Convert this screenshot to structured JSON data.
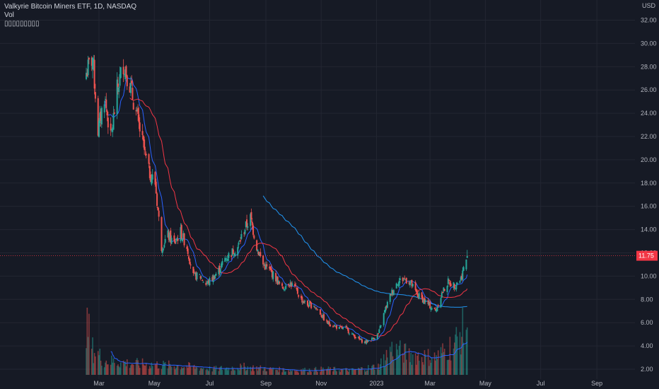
{
  "header": {
    "symbol_line": "Valkyrie Bitcoin Miners ETF, 1D, NASDAQ",
    "volume_label": "Vol",
    "indicator_placeholder": "▯▯▯▯▯▯▯▯▯"
  },
  "chart_data": {
    "type": "candlestick",
    "title": "Valkyrie Bitcoin Miners ETF, 1D, NASDAQ",
    "currency": "USD",
    "y_tick_labels": [
      "32.00",
      "30.00",
      "28.00",
      "26.00",
      "24.00",
      "22.00",
      "20.00",
      "18.00",
      "16.00",
      "14.00",
      "12.00",
      "10.00",
      "8.00",
      "6.00",
      "4.00",
      "2.00"
    ],
    "ylim": [
      1.8,
      33
    ],
    "x_tick_labels": [
      "Mar",
      "May",
      "Jul",
      "Sep",
      "Nov",
      "2023",
      "Mar",
      "May",
      "Jul",
      "Sep"
    ],
    "last_price": "11.75",
    "last_price_value": 11.75,
    "colors": {
      "up": "#26a69a",
      "down": "#ef5350",
      "ma_fast": "#2962ff",
      "ma_slow": "#f23645",
      "ma_long": "#2196f3",
      "price_line": "#f23645"
    },
    "price_path": [
      [
        "2022-02-15",
        27.5
      ],
      [
        "2022-02-22",
        28.8
      ],
      [
        "2022-02-28",
        22.5
      ],
      [
        "2022-03-07",
        25.5
      ],
      [
        "2022-03-14",
        21.8
      ],
      [
        "2022-03-21",
        26.0
      ],
      [
        "2022-03-28",
        28.3
      ],
      [
        "2022-04-04",
        26.5
      ],
      [
        "2022-04-11",
        24.0
      ],
      [
        "2022-04-18",
        21.5
      ],
      [
        "2022-04-25",
        19.0
      ],
      [
        "2022-05-02",
        18.0
      ],
      [
        "2022-05-09",
        12.5
      ],
      [
        "2022-05-16",
        13.5
      ],
      [
        "2022-05-23",
        12.8
      ],
      [
        "2022-05-30",
        13.8
      ],
      [
        "2022-06-06",
        12.5
      ],
      [
        "2022-06-13",
        10.0
      ],
      [
        "2022-06-20",
        10.0
      ],
      [
        "2022-06-27",
        9.3
      ],
      [
        "2022-07-04",
        9.8
      ],
      [
        "2022-07-11",
        10.5
      ],
      [
        "2022-07-18",
        11.5
      ],
      [
        "2022-07-25",
        12.0
      ],
      [
        "2022-08-01",
        12.5
      ],
      [
        "2022-08-08",
        14.0
      ],
      [
        "2022-08-15",
        15.0
      ],
      [
        "2022-08-22",
        12.5
      ],
      [
        "2022-08-29",
        11.0
      ],
      [
        "2022-09-05",
        10.5
      ],
      [
        "2022-09-12",
        9.8
      ],
      [
        "2022-09-19",
        8.9
      ],
      [
        "2022-09-26",
        9.5
      ],
      [
        "2022-10-03",
        9.0
      ],
      [
        "2022-10-10",
        8.0
      ],
      [
        "2022-10-17",
        7.5
      ],
      [
        "2022-10-24",
        7.5
      ],
      [
        "2022-10-31",
        6.8
      ],
      [
        "2022-11-07",
        6.0
      ],
      [
        "2022-11-14",
        5.8
      ],
      [
        "2022-11-21",
        5.5
      ],
      [
        "2022-11-28",
        5.5
      ],
      [
        "2022-12-05",
        5.0
      ],
      [
        "2022-12-12",
        4.6
      ],
      [
        "2022-12-19",
        4.3
      ],
      [
        "2022-12-27",
        4.6
      ],
      [
        "2023-01-03",
        5.0
      ],
      [
        "2023-01-10",
        7.0
      ],
      [
        "2023-01-17",
        8.5
      ],
      [
        "2023-01-24",
        9.5
      ],
      [
        "2023-01-31",
        9.8
      ],
      [
        "2023-02-07",
        9.5
      ],
      [
        "2023-02-14",
        8.5
      ],
      [
        "2023-02-21",
        8.0
      ],
      [
        "2023-02-28",
        7.5
      ],
      [
        "2023-03-07",
        7.0
      ],
      [
        "2023-03-14",
        8.5
      ],
      [
        "2023-03-21",
        9.5
      ],
      [
        "2023-03-28",
        9.2
      ],
      [
        "2023-04-04",
        9.8
      ],
      [
        "2023-04-11",
        11.75
      ]
    ],
    "volume_path": [
      [
        "2022-02-15",
        0.95
      ],
      [
        "2022-02-22",
        0.45
      ],
      [
        "2022-03-07",
        0.25
      ],
      [
        "2022-04-04",
        0.2
      ],
      [
        "2022-05-02",
        0.18
      ],
      [
        "2022-06-06",
        0.15
      ],
      [
        "2022-07-04",
        0.1
      ],
      [
        "2022-08-08",
        0.14
      ],
      [
        "2022-09-05",
        0.1
      ],
      [
        "2022-10-03",
        0.08
      ],
      [
        "2022-11-07",
        0.1
      ],
      [
        "2022-12-05",
        0.08
      ],
      [
        "2023-01-03",
        0.15
      ],
      [
        "2023-01-17",
        0.45
      ],
      [
        "2023-02-07",
        0.35
      ],
      [
        "2023-03-07",
        0.3
      ],
      [
        "2023-03-28",
        0.55
      ],
      [
        "2023-04-11",
        0.9
      ]
    ],
    "moving_averages": [
      {
        "kind": "fast",
        "color": "#2962ff",
        "start": "2022-03-07"
      },
      {
        "kind": "slow",
        "color": "#f23645",
        "start": "2022-04-04"
      },
      {
        "kind": "long",
        "color": "#2196f3",
        "start": "2022-08-08"
      }
    ]
  }
}
